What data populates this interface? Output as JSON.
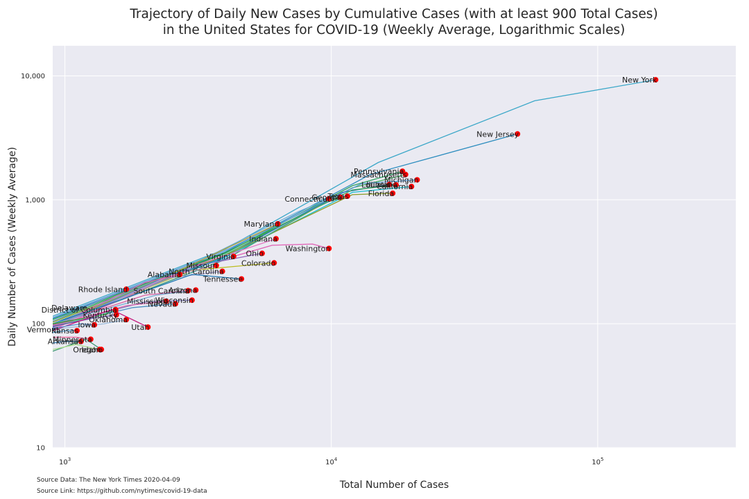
{
  "chart_data": {
    "type": "line",
    "title_line1": "Trajectory of Daily New Cases by Cumulative Cases (with at least 900 Total Cases)",
    "title_line2": "in the United States for COVID-19 (Weekly Average, Logarithmic Scales)",
    "xlabel": "Total Number of Cases",
    "ylabel": "Daily Number of Cases (Weekly Average)",
    "x_scale": "log",
    "y_scale": "log",
    "xlim": [
      900,
      330000
    ],
    "ylim": [
      10,
      17500
    ],
    "x_ticks": [
      {
        "value": 1000,
        "base": "10",
        "exp": "3"
      },
      {
        "value": 10000,
        "base": "10",
        "exp": "4"
      },
      {
        "value": 100000,
        "base": "10",
        "exp": "5"
      }
    ],
    "y_ticks": [
      {
        "value": 10,
        "label": "10"
      },
      {
        "value": 100,
        "label": "100"
      },
      {
        "value": 1000,
        "label": "1,000"
      },
      {
        "value": 10000,
        "label": "10,000"
      }
    ],
    "grid": true,
    "background": "#eaeaf2",
    "marker_color": "#ff0000",
    "source_data": "Source Data: The New York Times 2020-04-09",
    "source_link": "Source Link: https://github.com/nytimes/covid-19-data",
    "series": [
      {
        "name": "New York",
        "color": "#3aa7c8",
        "x": [
          900,
          4000,
          15000,
          58000,
          165000
        ],
        "y": [
          115,
          400,
          2000,
          6300,
          9300
        ]
      },
      {
        "name": "New Jersey",
        "color": "#2b8cbe",
        "x": [
          900,
          4000,
          14000,
          50000
        ],
        "y": [
          110,
          380,
          1600,
          3400
        ]
      },
      {
        "name": "Pennsylvania",
        "color": "#2ca25f",
        "x": [
          900,
          4000,
          12000,
          18500
        ],
        "y": [
          105,
          370,
          1300,
          1700
        ]
      },
      {
        "name": "Massachusetts",
        "color": "#41ab5d",
        "x": [
          900,
          4000,
          12000,
          19000
        ],
        "y": [
          100,
          360,
          1250,
          1600
        ]
      },
      {
        "name": "Michigan",
        "color": "#5b9bd5",
        "x": [
          900,
          4000,
          13000,
          21000
        ],
        "y": [
          112,
          390,
          1350,
          1450
        ]
      },
      {
        "name": "Illinois",
        "color": "#2d7bb6",
        "x": [
          900,
          4000,
          11000,
          16500
        ],
        "y": [
          100,
          350,
          1150,
          1330
        ]
      },
      {
        "name": "Louisiana",
        "color": "#31a354",
        "x": [
          900,
          4000,
          12000,
          17500
        ],
        "y": [
          108,
          375,
          1200,
          1320
        ]
      },
      {
        "name": "California",
        "color": "#17becf",
        "x": [
          900,
          4000,
          12000,
          20000
        ],
        "y": [
          98,
          345,
          1150,
          1280
        ]
      },
      {
        "name": "Florida",
        "color": "#8c9d2b",
        "x": [
          900,
          4000,
          12000,
          17000
        ],
        "y": [
          103,
          355,
          1100,
          1130
        ]
      },
      {
        "name": "Texas",
        "color": "#7cae3a",
        "x": [
          900,
          4000,
          9500,
          11500
        ],
        "y": [
          96,
          330,
          950,
          1070
        ]
      },
      {
        "name": "Georgia",
        "color": "#3b9b8f",
        "x": [
          900,
          4000,
          9000,
          10800
        ],
        "y": [
          95,
          330,
          900,
          1050
        ]
      },
      {
        "name": "Connecticut",
        "color": "#6baed6",
        "x": [
          900,
          3000,
          7500,
          9800
        ],
        "y": [
          98,
          300,
          800,
          1020
        ]
      },
      {
        "name": "Maryland",
        "color": "#b0a030",
        "x": [
          900,
          3000,
          6300
        ],
        "y": [
          95,
          300,
          640
        ]
      },
      {
        "name": "Indiana",
        "color": "#e377c2",
        "x": [
          900,
          3000,
          6200
        ],
        "y": [
          92,
          290,
          485
        ]
      },
      {
        "name": "Washington",
        "color": "#e05fb4",
        "x": [
          900,
          3000,
          6000,
          8500,
          9800
        ],
        "y": [
          90,
          280,
          430,
          440,
          405
        ]
      },
      {
        "name": "Ohio",
        "color": "#9467bd",
        "x": [
          900,
          3000,
          5500
        ],
        "y": [
          94,
          290,
          370
        ]
      },
      {
        "name": "Colorado",
        "color": "#bcbd22",
        "x": [
          900,
          3000,
          6100
        ],
        "y": [
          98,
          270,
          310
        ]
      },
      {
        "name": "Virginia",
        "color": "#4292c6",
        "x": [
          900,
          2500,
          4300
        ],
        "y": [
          93,
          250,
          350
        ]
      },
      {
        "name": "Missouri",
        "color": "#c994c7",
        "x": [
          900,
          2500,
          3700
        ],
        "y": [
          92,
          245,
          295
        ]
      },
      {
        "name": "Alabama",
        "color": "#dd5fb0",
        "x": [
          900,
          2000,
          2700
        ],
        "y": [
          95,
          215,
          250
        ]
      },
      {
        "name": "North Carolina",
        "color": "#9e9ac8",
        "x": [
          900,
          2500,
          3900
        ],
        "y": [
          96,
          235,
          265
        ]
      },
      {
        "name": "Tennessee",
        "color": "#1f78b4",
        "x": [
          900,
          3000,
          4600
        ],
        "y": [
          100,
          250,
          230
        ]
      },
      {
        "name": "Rhode Island",
        "color": "#7b9cd1",
        "x": [
          900,
          1700
        ],
        "y": [
          105,
          190
        ]
      },
      {
        "name": "South Carolina",
        "color": "#d95f9f",
        "x": [
          900,
          2000,
          2900
        ],
        "y": [
          98,
          170,
          185
        ]
      },
      {
        "name": "Arizona",
        "color": "#74a9cf",
        "x": [
          900,
          2200,
          3100
        ],
        "y": [
          100,
          170,
          187
        ]
      },
      {
        "name": "Wisconsin",
        "color": "#807dba",
        "x": [
          900,
          2000,
          3000
        ],
        "y": [
          97,
          150,
          155
        ]
      },
      {
        "name": "Mississippi",
        "color": "#df65b0",
        "x": [
          900,
          1700,
          2400
        ],
        "y": [
          96,
          140,
          152
        ]
      },
      {
        "name": "Nevada",
        "color": "#4a90c2",
        "x": [
          900,
          1800,
          2600
        ],
        "y": [
          95,
          135,
          145
        ]
      },
      {
        "name": "Delaware",
        "color": "#2ca02c",
        "x": [
          900,
          1400,
          1550
        ],
        "y": [
          100,
          118,
          130
        ]
      },
      {
        "name": "District of Columbia",
        "color": "#66c2a4",
        "x": [
          900,
          1300,
          1550
        ],
        "y": [
          95,
          115,
          128
        ]
      },
      {
        "name": "Kentucky",
        "color": "#6a51a3",
        "x": [
          900,
          1300,
          1560
        ],
        "y": [
          95,
          112,
          118
        ]
      },
      {
        "name": "Oklahoma",
        "color": "#9ebcda",
        "x": [
          900,
          1400,
          1700
        ],
        "y": [
          90,
          100,
          108
        ]
      },
      {
        "name": "Utah",
        "color": "#c51b7d",
        "x": [
          900,
          1500,
          2050
        ],
        "y": [
          88,
          130,
          94
        ]
      },
      {
        "name": "Iowa",
        "color": "#5a8fd0",
        "x": [
          900,
          1150,
          1290
        ],
        "y": [
          92,
          100,
          98
        ]
      },
      {
        "name": "Kansas",
        "color": "#56a0d3",
        "x": [
          900,
          1020,
          1110
        ],
        "y": [
          85,
          88,
          88
        ]
      },
      {
        "name": "Idaho",
        "color": "#3d9970",
        "x": [
          900,
          1200,
          1370
        ],
        "y": [
          60,
          75,
          62
        ]
      },
      {
        "name": "Minnesota",
        "color": "#f768a1",
        "x": [
          900,
          1100,
          1250
        ],
        "y": [
          78,
          78,
          75
        ]
      },
      {
        "name": "Arkansas",
        "color": "#2c7fb8",
        "x": [
          900,
          1000,
          1150
        ],
        "y": [
          70,
          72,
          72
        ]
      },
      {
        "name": "Oregon",
        "color": "#addd8e",
        "x": [
          900,
          1100,
          1350
        ],
        "y": [
          62,
          68,
          62
        ]
      },
      {
        "name": "Vermont",
        "color": "#4393c3",
        "x": [
          900,
          920
        ],
        "y": [
          90,
          90
        ]
      }
    ],
    "labels": [
      {
        "text": "New York",
        "x": 165000,
        "y": 9300,
        "anchor": "end"
      },
      {
        "text": "New Jersey",
        "x": 50000,
        "y": 3400,
        "anchor": "end"
      },
      {
        "text": "Pennsylvania",
        "x": 18500,
        "y": 1700,
        "anchor": "end"
      },
      {
        "text": "Massachusetts",
        "x": 19000,
        "y": 1600,
        "anchor": "end"
      },
      {
        "text": "Michigan",
        "x": 21000,
        "y": 1450,
        "anchor": "end"
      },
      {
        "text": "Illinois",
        "x": 16500,
        "y": 1330,
        "anchor": "end"
      },
      {
        "text": "Louisiana",
        "x": 17500,
        "y": 1320,
        "anchor": "end"
      },
      {
        "text": "California",
        "x": 20000,
        "y": 1280,
        "anchor": "end"
      },
      {
        "text": "Florida",
        "x": 17000,
        "y": 1130,
        "anchor": "end"
      },
      {
        "text": "Texas",
        "x": 11500,
        "y": 1070,
        "anchor": "end"
      },
      {
        "text": "Georgia",
        "x": 10800,
        "y": 1050,
        "anchor": "end"
      },
      {
        "text": "Connecticut",
        "x": 9800,
        "y": 1020,
        "anchor": "end"
      },
      {
        "text": "Maryland",
        "x": 6300,
        "y": 640,
        "anchor": "end"
      },
      {
        "text": "Indiana",
        "x": 6200,
        "y": 485,
        "anchor": "end"
      },
      {
        "text": "Washington",
        "x": 9800,
        "y": 405,
        "anchor": "end"
      },
      {
        "text": "Ohio",
        "x": 5500,
        "y": 370,
        "anchor": "end"
      },
      {
        "text": "Colorado",
        "x": 6100,
        "y": 310,
        "anchor": "end"
      },
      {
        "text": "Virginia",
        "x": 4300,
        "y": 350,
        "anchor": "end"
      },
      {
        "text": "Missouri",
        "x": 3700,
        "y": 295,
        "anchor": "end"
      },
      {
        "text": "Alabama",
        "x": 2700,
        "y": 250,
        "anchor": "end"
      },
      {
        "text": "North Carolina",
        "x": 3900,
        "y": 265,
        "anchor": "end"
      },
      {
        "text": "Tennessee",
        "x": 4600,
        "y": 230,
        "anchor": "end"
      },
      {
        "text": "Rhode Island",
        "x": 1700,
        "y": 190,
        "anchor": "end"
      },
      {
        "text": "South Carolina",
        "x": 2900,
        "y": 185,
        "anchor": "end"
      },
      {
        "text": "Arizona",
        "x": 3100,
        "y": 187,
        "anchor": "end"
      },
      {
        "text": "Wisconsin",
        "x": 3000,
        "y": 155,
        "anchor": "end"
      },
      {
        "text": "Mississippi",
        "x": 2400,
        "y": 152,
        "anchor": "end"
      },
      {
        "text": "Nevada",
        "x": 2600,
        "y": 145,
        "anchor": "end"
      },
      {
        "text": "Delaware",
        "x": 1200,
        "y": 135,
        "anchor": "end"
      },
      {
        "text": "District of Columbia",
        "x": 1550,
        "y": 130,
        "anchor": "end"
      },
      {
        "text": "Kentucky",
        "x": 1560,
        "y": 118,
        "anchor": "end"
      },
      {
        "text": "Oklahoma",
        "x": 1700,
        "y": 108,
        "anchor": "end"
      },
      {
        "text": "Utah",
        "x": 2050,
        "y": 94,
        "anchor": "end"
      },
      {
        "text": "Iowa",
        "x": 1290,
        "y": 98,
        "anchor": "end"
      },
      {
        "text": "Kansas",
        "x": 1110,
        "y": 88,
        "anchor": "end"
      },
      {
        "text": "Vermont",
        "x": 940,
        "y": 90,
        "anchor": "end"
      },
      {
        "text": "Minnesota",
        "x": 1250,
        "y": 75,
        "anchor": "end"
      },
      {
        "text": "Arkansas",
        "x": 1150,
        "y": 72,
        "anchor": "end"
      },
      {
        "text": "Oregon",
        "x": 1350,
        "y": 62,
        "anchor": "end"
      },
      {
        "text": "Idaho",
        "x": 1370,
        "y": 62,
        "anchor": "end"
      }
    ]
  }
}
